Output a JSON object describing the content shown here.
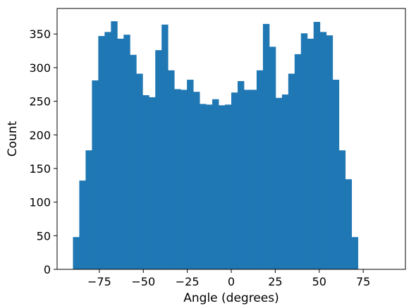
{
  "chart_data": {
    "type": "bar",
    "title": "",
    "xlabel": "Angle (degrees)",
    "ylabel": "Count",
    "bin_width": 3.6,
    "x_start": -90,
    "xlim": [
      -99,
      99
    ],
    "ylim": [
      0,
      388
    ],
    "xticks": [
      -75,
      -50,
      -25,
      0,
      25,
      50,
      75
    ],
    "xtick_labels": [
      "−75",
      "−50",
      "−25",
      "0",
      "25",
      "50",
      "75"
    ],
    "yticks": [
      0,
      50,
      100,
      150,
      200,
      250,
      300,
      350
    ],
    "ytick_labels": [
      "0",
      "50",
      "100",
      "150",
      "200",
      "250",
      "300",
      "350"
    ],
    "grid": false,
    "bar_color": "#1f77b4",
    "values": [
      48,
      132,
      177,
      281,
      347,
      353,
      369,
      343,
      349,
      319,
      291,
      259,
      256,
      326,
      364,
      296,
      268,
      267,
      282,
      264,
      246,
      245,
      253,
      244,
      245,
      263,
      280,
      267,
      267,
      296,
      365,
      331,
      255,
      260,
      291,
      320,
      351,
      343,
      368,
      353,
      348,
      282,
      177,
      134,
      48
    ]
  }
}
